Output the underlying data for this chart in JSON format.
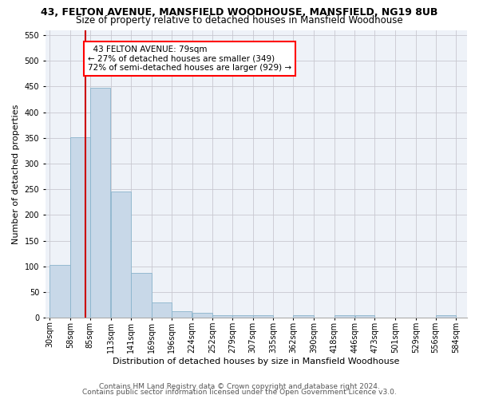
{
  "title1": "43, FELTON AVENUE, MANSFIELD WOODHOUSE, MANSFIELD, NG19 8UB",
  "title2": "Size of property relative to detached houses in Mansfield Woodhouse",
  "xlabel": "Distribution of detached houses by size in Mansfield Woodhouse",
  "ylabel": "Number of detached properties",
  "footer1": "Contains HM Land Registry data © Crown copyright and database right 2024.",
  "footer2": "Contains public sector information licensed under the Open Government Licence v3.0.",
  "annotation_line1": "  43 FELTON AVENUE: 79sqm  ",
  "annotation_line2": "← 27% of detached houses are smaller (349)",
  "annotation_line3": "72% of semi-detached houses are larger (929) →",
  "property_size": 79,
  "bin_edges": [
    30,
    58,
    85,
    113,
    141,
    169,
    196,
    224,
    252,
    279,
    307,
    335,
    362,
    390,
    418,
    446,
    473,
    501,
    529,
    556,
    584
  ],
  "bar_heights": [
    103,
    352,
    447,
    245,
    87,
    30,
    13,
    9,
    5,
    5,
    5,
    0,
    5,
    0,
    5,
    5,
    0,
    0,
    0,
    5
  ],
  "bar_color": "#c8d8e8",
  "bar_edge_color": "#8ab4cc",
  "line_color": "#cc0000",
  "grid_color": "#c8c8d0",
  "bg_color": "#eef2f8",
  "ylim": [
    0,
    560
  ],
  "yticks": [
    0,
    50,
    100,
    150,
    200,
    250,
    300,
    350,
    400,
    450,
    500,
    550
  ],
  "title1_fontsize": 9,
  "title2_fontsize": 8.5,
  "annotation_fontsize": 7.5,
  "axis_fontsize": 7,
  "xlabel_fontsize": 8,
  "ylabel_fontsize": 8,
  "footer_fontsize": 6.5
}
